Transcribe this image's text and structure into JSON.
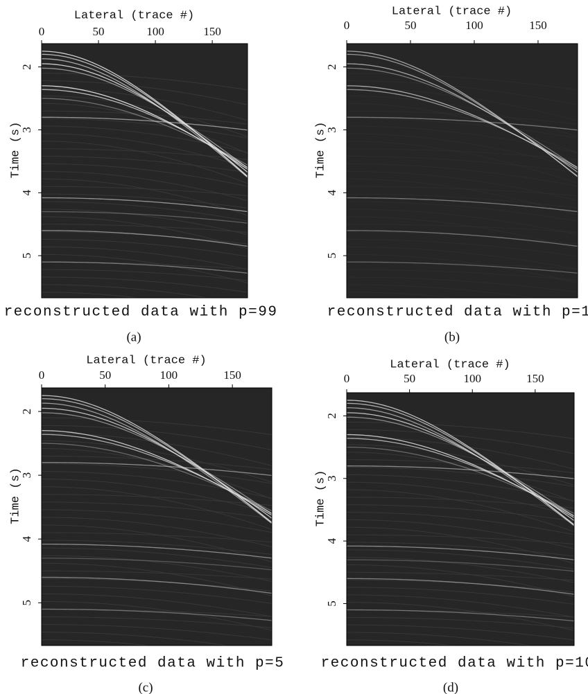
{
  "chart_data": [
    {
      "type": "seismic",
      "xlabel": "Lateral (trace #)",
      "ylabel": "Time (s)",
      "xlim": [
        0,
        181
      ],
      "ylim": [
        1.63,
        5.67
      ],
      "xticks": [
        0,
        50,
        100,
        150
      ],
      "yticks": [
        2,
        3,
        4,
        5
      ],
      "caption": "reconstructed data with p=99",
      "label": "(a)"
    },
    {
      "type": "seismic",
      "xlabel": "Lateral (trace #)",
      "ylabel": "Time (s)",
      "xlim": [
        0,
        181
      ],
      "ylim": [
        1.63,
        5.67
      ],
      "xticks": [
        0,
        50,
        100,
        150
      ],
      "yticks": [
        2,
        3,
        4,
        5
      ],
      "caption": "reconstructed data with p=1",
      "label": "(b)"
    },
    {
      "type": "seismic",
      "xlabel": "Lateral (trace #)",
      "ylabel": "Time (s)",
      "xlim": [
        0,
        181
      ],
      "ylim": [
        1.63,
        5.67
      ],
      "xticks": [
        0,
        50,
        100,
        150
      ],
      "yticks": [
        2,
        3,
        4,
        5
      ],
      "caption": "reconstructed data with p=5",
      "label": "(c)"
    },
    {
      "type": "seismic",
      "xlabel": "Lateral (trace #)",
      "ylabel": "Time (s)",
      "xlim": [
        0,
        181
      ],
      "ylim": [
        1.63,
        5.67
      ],
      "xticks": [
        0,
        50,
        100,
        150
      ],
      "yticks": [
        2,
        3,
        4,
        5
      ],
      "caption": "reconstructed data with p=10",
      "label": "(d)"
    }
  ]
}
